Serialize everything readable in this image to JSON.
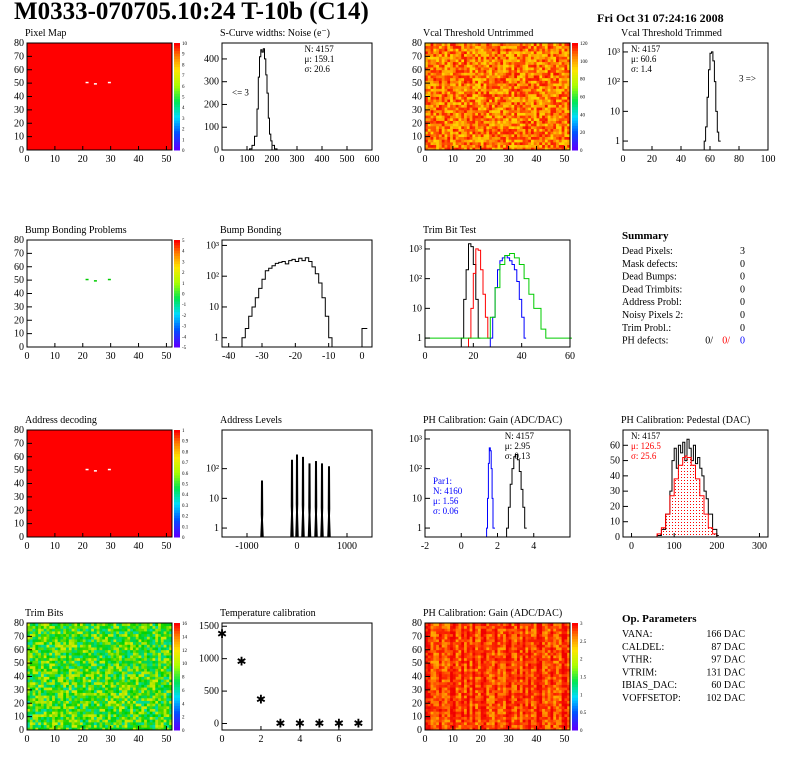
{
  "header": {
    "title": "M0333-070705.10:24 T-10b (C14)",
    "date": "Fri Oct 31 07:24:16 2008"
  },
  "colors": {
    "red": "#ff0000",
    "green": "#00cc00",
    "blue": "#0000ff",
    "black": "#000000"
  },
  "panels": [
    {
      "id": "pixel-map",
      "type": "heatmap",
      "title": "Pixel Map",
      "heatmap_style": "flat",
      "xlim": [
        0,
        52
      ],
      "ylim": [
        0,
        80
      ],
      "xticks": [
        0,
        10,
        20,
        30,
        40,
        50
      ],
      "yticks": [
        0,
        10,
        20,
        30,
        40,
        50,
        60,
        70,
        80
      ],
      "colorbar": [
        "10",
        "9",
        "8",
        "7",
        "6",
        "5",
        "4",
        "3",
        "2",
        "1",
        "0"
      ],
      "special_cells": [
        {
          "x": 21,
          "y": 50
        },
        {
          "x": 24,
          "y": 49
        },
        {
          "x": 29,
          "y": 50
        }
      ]
    },
    {
      "id": "scurve-widths",
      "type": "line",
      "title": "S-Curve widths: Noise (e⁻)",
      "xlim": [
        0,
        600
      ],
      "ylim": [
        0,
        470
      ],
      "log": false,
      "xticks": [
        0,
        100,
        200,
        300,
        400,
        500,
        600
      ],
      "yticks": [
        0,
        100,
        200,
        300,
        400
      ],
      "stats": [
        {
          "text": "N: 4157",
          "color": "#000000"
        },
        {
          "text": "μ: 159.1",
          "color": "#000000"
        },
        {
          "text": "σ: 20.6",
          "color": "#000000"
        }
      ],
      "annotation": {
        "text": "<= 3",
        "x": 40,
        "y": 240
      },
      "series": [
        {
          "color": "#000000",
          "x": [
            100,
            110,
            120,
            130,
            140,
            145,
            150,
            155,
            160,
            165,
            170,
            175,
            180,
            185,
            190,
            195,
            200,
            210,
            220
          ],
          "y": [
            0,
            5,
            20,
            60,
            180,
            320,
            410,
            440,
            430,
            445,
            400,
            330,
            250,
            140,
            70,
            40,
            20,
            5,
            0
          ]
        }
      ]
    },
    {
      "id": "vcal-untrimmed",
      "type": "heatmap",
      "title": "Vcal Threshold Untrimmed",
      "heatmap_style": "noisy_warm",
      "xlim": [
        0,
        52
      ],
      "ylim": [
        0,
        80
      ],
      "xticks": [
        0,
        10,
        20,
        30,
        40,
        50
      ],
      "yticks": [
        0,
        10,
        20,
        30,
        40,
        50,
        60,
        70,
        80
      ],
      "colorbar": [
        "120",
        "100",
        "80",
        "60",
        "40",
        "20",
        "0"
      ]
    },
    {
      "id": "vcal-trimmed",
      "type": "line",
      "title": "Vcal Threshold Trimmed",
      "xlim": [
        0,
        100
      ],
      "ylim": [
        0.5,
        2000
      ],
      "log": true,
      "xticks": [
        0,
        20,
        40,
        60,
        80,
        100
      ],
      "yticks": [
        1,
        10,
        100,
        1000
      ],
      "ytick_labels": [
        "1",
        "10",
        "10²",
        "10³"
      ],
      "stats": [
        {
          "text": "N: 4157",
          "color": "#000000"
        },
        {
          "text": "μ: 60.6",
          "color": "#000000"
        },
        {
          "text": "σ: 1.4",
          "color": "#000000"
        }
      ],
      "annotation": {
        "text": "3 =>",
        "x": 80,
        "y": 100
      },
      "series": [
        {
          "color": "#000000",
          "x": [
            56,
            57,
            58,
            59,
            60,
            61,
            62,
            63,
            64,
            65,
            66
          ],
          "y": [
            1,
            3,
            30,
            250,
            900,
            1000,
            500,
            100,
            10,
            2,
            1
          ]
        }
      ]
    },
    {
      "id": "bump-bonding-problems",
      "type": "heatmap",
      "title": "Bump Bonding Problems",
      "heatmap_style": "blank",
      "xlim": [
        0,
        52
      ],
      "ylim": [
        0,
        80
      ],
      "xticks": [
        0,
        10,
        20,
        30,
        40,
        50
      ],
      "yticks": [
        0,
        10,
        20,
        30,
        40,
        50,
        60,
        70,
        80
      ],
      "colorbar": [
        "5",
        "4",
        "3",
        "2",
        "1",
        "0",
        "-1",
        "-2",
        "-3",
        "-4",
        "-5"
      ],
      "special_cells": [
        {
          "x": 21,
          "y": 50
        },
        {
          "x": 24,
          "y": 49
        },
        {
          "x": 29,
          "y": 50
        }
      ]
    },
    {
      "id": "bump-bonding",
      "type": "line",
      "title": "Bump Bonding",
      "xlim": [
        -42,
        3
      ],
      "ylim": [
        0.5,
        1500
      ],
      "log": true,
      "xticks": [
        -40,
        -30,
        -20,
        -10,
        0
      ],
      "yticks": [
        1,
        10,
        100,
        1000
      ],
      "ytick_labels": [
        "1",
        "10",
        "10²",
        "10³"
      ],
      "series": [
        {
          "color": "#000000",
          "x": [
            -36,
            -35,
            -34,
            -33,
            -32,
            -31,
            -30,
            -29,
            -28,
            -27,
            -26,
            -25,
            -24,
            -23,
            -22,
            -21,
            -20,
            -19,
            -18,
            -17,
            -16,
            -15,
            -14,
            -13,
            -12,
            -11,
            -10,
            -9
          ],
          "y": [
            1,
            2,
            5,
            10,
            20,
            40,
            80,
            150,
            180,
            220,
            260,
            280,
            300,
            250,
            320,
            350,
            300,
            380,
            320,
            400,
            300,
            200,
            120,
            60,
            20,
            5,
            1,
            0.5
          ]
        },
        {
          "color": "#000000",
          "x": [
            0,
            1
          ],
          "y": [
            2,
            2
          ]
        }
      ]
    },
    {
      "id": "trim-bit-test",
      "type": "line",
      "title": "Trim Bit Test",
      "xlim": [
        0,
        60
      ],
      "ylim": [
        0.5,
        2000
      ],
      "log": true,
      "xticks": [
        0,
        20,
        40,
        60
      ],
      "yticks": [
        1,
        10,
        100,
        1000
      ],
      "ytick_labels": [
        "1",
        "10",
        "10²",
        "10³"
      ],
      "series": [
        {
          "color": "#000000",
          "x": [
            15,
            16,
            17,
            18,
            19,
            20,
            21,
            22
          ],
          "y": [
            1,
            20,
            200,
            1500,
            1200,
            300,
            20,
            1
          ]
        },
        {
          "color": "#ff0000",
          "x": [
            18,
            19,
            20,
            21,
            22,
            23,
            24,
            25,
            26
          ],
          "y": [
            1,
            10,
            150,
            1000,
            900,
            200,
            30,
            5,
            1
          ]
        },
        {
          "color": "#0000ff",
          "x": [
            27,
            28,
            29,
            30,
            31,
            32,
            33,
            34,
            35,
            36,
            37,
            38,
            39,
            40,
            41
          ],
          "y": [
            1,
            5,
            50,
            200,
            400,
            500,
            600,
            500,
            400,
            300,
            200,
            80,
            20,
            5,
            1
          ]
        },
        {
          "color": "#00cc00",
          "x": [
            0,
            2,
            5,
            10,
            15,
            20,
            25,
            27,
            29,
            31,
            33,
            35,
            37,
            39,
            41,
            43,
            45,
            48,
            50,
            55,
            60
          ],
          "y": [
            1,
            1,
            1,
            1,
            1,
            1,
            1,
            5,
            50,
            300,
            600,
            700,
            500,
            300,
            100,
            30,
            10,
            2,
            1,
            1,
            1
          ]
        }
      ]
    },
    {
      "id": "summary",
      "type": "table",
      "title": "Summary",
      "rows": [
        {
          "label": "Dead Pixels:",
          "value": "3"
        },
        {
          "label": "Mask defects:",
          "value": "0"
        },
        {
          "label": "Dead Bumps:",
          "value": "0"
        },
        {
          "label": "Dead Trimbits:",
          "value": "0"
        },
        {
          "label": "Address Probl:",
          "value": "0"
        },
        {
          "label": "Noisy Pixels 2:",
          "value": "0"
        },
        {
          "label": "Trim Probl.:",
          "value": "0"
        }
      ],
      "ph_defects": {
        "label": "PH defects:",
        "values": [
          {
            "text": "0/",
            "color": "#000000"
          },
          {
            "text": "0/",
            "color": "#ff0000"
          },
          {
            "text": "0",
            "color": "#0000ff"
          }
        ]
      }
    },
    {
      "id": "address-decoding",
      "type": "heatmap",
      "title": "Address decoding",
      "heatmap_style": "flat",
      "xlim": [
        0,
        52
      ],
      "ylim": [
        0,
        80
      ],
      "xticks": [
        0,
        10,
        20,
        30,
        40,
        50
      ],
      "yticks": [
        0,
        10,
        20,
        30,
        40,
        50,
        60,
        70,
        80
      ],
      "colorbar": [
        "1",
        "0.9",
        "0.8",
        "0.7",
        "0.6",
        "0.5",
        "0.4",
        "0.3",
        "0.2",
        "0.1",
        "0"
      ],
      "special_cells": [
        {
          "x": 21,
          "y": 50
        },
        {
          "x": 24,
          "y": 49
        },
        {
          "x": 29,
          "y": 50
        }
      ]
    },
    {
      "id": "address-levels",
      "type": "line",
      "title": "Address Levels",
      "xlim": [
        -1500,
        1500
      ],
      "ylim": [
        0.5,
        2000
      ],
      "log": true,
      "xticks": [
        -1000,
        0,
        1000
      ],
      "yticks": [
        1,
        10,
        100
      ],
      "ytick_labels": [
        "1",
        "10",
        "10²"
      ],
      "spikes": [
        {
          "center": -700,
          "width": 30,
          "height": 40
        },
        {
          "center": -100,
          "width": 30,
          "height": 200
        },
        {
          "center": 0,
          "width": 30,
          "height": 300
        },
        {
          "center": 120,
          "width": 30,
          "height": 250
        },
        {
          "center": 250,
          "width": 30,
          "height": 150
        },
        {
          "center": 380,
          "width": 30,
          "height": 180
        },
        {
          "center": 500,
          "width": 30,
          "height": 150
        },
        {
          "center": 640,
          "width": 30,
          "height": 120
        }
      ]
    },
    {
      "id": "ph-gain",
      "type": "line",
      "title": "PH Calibration: Gain (ADC/DAC)",
      "xlim": [
        -2,
        6
      ],
      "ylim": [
        0.5,
        2000
      ],
      "log": true,
      "xticks": [
        -2,
        0,
        2,
        4
      ],
      "yticks": [
        1,
        10,
        100,
        1000
      ],
      "ytick_labels": [
        "1",
        "10",
        "10²",
        "10³"
      ],
      "stats": [
        {
          "text": "N: 4157",
          "color": "#000000"
        },
        {
          "text": "μ: 2.95",
          "color": "#000000"
        },
        {
          "text": "σ: 0.13",
          "color": "#000000"
        }
      ],
      "stats2": [
        {
          "text": "Par1:",
          "color": "#0000ff"
        },
        {
          "text": "N: 4160",
          "color": "#0000ff"
        },
        {
          "text": "μ: 1.56",
          "color": "#0000ff"
        },
        {
          "text": "σ: 0.06",
          "color": "#0000ff"
        }
      ],
      "series": [
        {
          "color": "#0000ff",
          "x": [
            1.4,
            1.45,
            1.5,
            1.55,
            1.6,
            1.65,
            1.7,
            1.75
          ],
          "y": [
            1,
            10,
            150,
            500,
            400,
            100,
            10,
            1
          ]
        },
        {
          "color": "#000000",
          "x": [
            2.5,
            2.6,
            2.7,
            2.8,
            2.9,
            3.0,
            3.1,
            3.2,
            3.3,
            3.4,
            3.5
          ],
          "y": [
            1,
            5,
            30,
            100,
            250,
            300,
            200,
            80,
            20,
            5,
            1
          ]
        }
      ]
    },
    {
      "id": "ph-pedestal",
      "type": "line",
      "title": "PH Calibration: Pedestal (DAC)",
      "xlim": [
        -20,
        320
      ],
      "ylim": [
        0,
        70
      ],
      "log": false,
      "xticks": [
        0,
        100,
        200,
        300
      ],
      "yticks": [
        0,
        10,
        20,
        30,
        40,
        50,
        60
      ],
      "stats": [
        {
          "text": "N: 4157",
          "color": "#000000"
        },
        {
          "text": "μ: 126.5",
          "color": "#ff0000"
        },
        {
          "text": "σ: 25.6",
          "color": "#ff0000"
        }
      ],
      "series": [
        {
          "color": "#000000",
          "x": [
            60,
            70,
            80,
            90,
            95,
            100,
            105,
            110,
            115,
            120,
            125,
            130,
            135,
            140,
            145,
            150,
            155,
            160,
            165,
            170,
            175,
            180,
            190,
            200
          ],
          "y": [
            1,
            5,
            15,
            30,
            50,
            58,
            45,
            60,
            55,
            62,
            50,
            64,
            58,
            50,
            60,
            48,
            52,
            45,
            40,
            30,
            25,
            15,
            5,
            1
          ]
        },
        {
          "color": "#ff0000",
          "fill": "hatched",
          "x": [
            50,
            60,
            70,
            80,
            90,
            100,
            110,
            120,
            126,
            130,
            140,
            150,
            160,
            170,
            180,
            190,
            200
          ],
          "y": [
            0,
            2,
            6,
            15,
            27,
            38,
            47,
            52,
            53,
            52,
            47,
            38,
            27,
            15,
            6,
            2,
            0
          ]
        }
      ]
    },
    {
      "id": "trim-bits",
      "type": "heatmap",
      "title": "Trim Bits",
      "heatmap_style": "noisy_cool",
      "xlim": [
        0,
        52
      ],
      "ylim": [
        0,
        80
      ],
      "xticks": [
        0,
        10,
        20,
        30,
        40,
        50
      ],
      "yticks": [
        0,
        10,
        20,
        30,
        40,
        50,
        60,
        70,
        80
      ],
      "colorbar": [
        "16",
        "14",
        "12",
        "10",
        "8",
        "6",
        "4",
        "2",
        "0"
      ]
    },
    {
      "id": "temperature-calibration",
      "type": "scatter",
      "title": "Temperature calibration",
      "xlim": [
        0,
        7.7
      ],
      "ylim": [
        -100,
        1550
      ],
      "log": false,
      "xticks": [
        0,
        2,
        4,
        6
      ],
      "yticks": [
        0,
        500,
        1000,
        1500
      ],
      "points": [
        {
          "x": 0,
          "y": 1380
        },
        {
          "x": 1,
          "y": 960
        },
        {
          "x": 2,
          "y": 370
        },
        {
          "x": 3,
          "y": 0
        },
        {
          "x": 4,
          "y": 0
        },
        {
          "x": 5,
          "y": 0
        },
        {
          "x": 6,
          "y": 0
        },
        {
          "x": 7,
          "y": 0
        }
      ]
    },
    {
      "id": "ph-gain-map",
      "type": "heatmap",
      "title": "PH Calibration: Gain (ADC/DAC)",
      "heatmap_style": "noisy_warm2",
      "xlim": [
        0,
        52
      ],
      "ylim": [
        0,
        80
      ],
      "xticks": [
        0,
        10,
        20,
        30,
        40,
        50
      ],
      "yticks": [
        0,
        10,
        20,
        30,
        40,
        50,
        60,
        70,
        80
      ],
      "colorbar": [
        "3",
        "2.5",
        "2",
        "1.5",
        "1",
        "0.5",
        "0"
      ]
    },
    {
      "id": "op-parameters",
      "type": "table",
      "title": "Op. Parameters",
      "rows": [
        {
          "label": "VANA:",
          "value": "166 DAC"
        },
        {
          "label": "CALDEL:",
          "value": "87 DAC"
        },
        {
          "label": "VTHR:",
          "value": "97 DAC"
        },
        {
          "label": "VTRIM:",
          "value": "131 DAC"
        },
        {
          "label": "IBIAS_DAC:",
          "value": "60 DAC"
        },
        {
          "label": "VOFFSETOP:",
          "value": "102 DAC"
        }
      ]
    }
  ]
}
